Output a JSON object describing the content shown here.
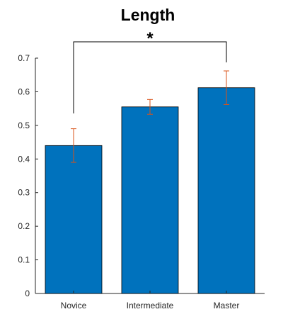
{
  "chart_data": {
    "type": "bar",
    "title": "Length",
    "xlabel": "",
    "ylabel": "",
    "categories": [
      "Novice",
      "Intermediate",
      "Master"
    ],
    "values": [
      0.44,
      0.555,
      0.612
    ],
    "error": [
      0.05,
      0.022,
      0.05
    ],
    "ylim": [
      0,
      0.7
    ],
    "yticks": [
      "0",
      "0.1",
      "0.2",
      "0.3",
      "0.4",
      "0.5",
      "0.6",
      "0.7"
    ],
    "grid": false,
    "legend": "none",
    "bar_color": "#0072BD",
    "error_color": "#D95319",
    "significance": {
      "from": "Novice",
      "to": "Master",
      "label": "*"
    }
  }
}
